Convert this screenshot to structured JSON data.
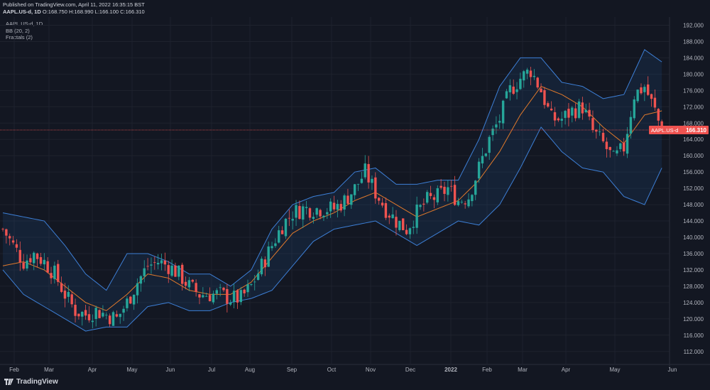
{
  "header": {
    "published": "Published on TradingView.com, April 11, 2022 16:35:15 BST",
    "symbol": "AAPL.US-d, 1D",
    "ohlc": "O:168.750 H:168.990 L:166.100 C:166.310"
  },
  "legend": {
    "title": "AAPL.US-d, 1D",
    "items": [
      "BB (20, 2)",
      "Fractals (2)"
    ]
  },
  "price_label": {
    "symbol": "AAPL.US-d",
    "value": "166.310"
  },
  "brand": "TradingView",
  "colors": {
    "background": "#131722",
    "up": "#26a69a",
    "down": "#ef5350",
    "bb_band": "#3d7fd6",
    "bb_basis": "#e0792b",
    "price_line": "#ef5350"
  },
  "chart_data": {
    "type": "candlestick",
    "y_axis_labels": [
      "192.000",
      "188.000",
      "184.000",
      "180.000",
      "176.000",
      "172.000",
      "168.000",
      "164.000",
      "160.000",
      "156.000",
      "152.000",
      "148.000",
      "144.000",
      "140.000",
      "136.000",
      "132.000",
      "128.000",
      "124.000",
      "120.000",
      "116.000",
      "112.000"
    ],
    "ylim": [
      109,
      194
    ],
    "x_labels": [
      "Feb",
      "Mar",
      "Apr",
      "May",
      "Jun",
      "Jul",
      "Aug",
      "Sep",
      "Oct",
      "Nov",
      "Dec",
      "2022",
      "Feb",
      "Mar",
      "Apr",
      "May",
      "Jun"
    ],
    "last_close": 166.31,
    "close_path": [
      [
        0,
        142
      ],
      [
        3,
        138
      ],
      [
        6,
        134
      ],
      [
        9,
        136
      ],
      [
        12,
        134
      ],
      [
        15,
        131
      ],
      [
        18,
        126
      ],
      [
        21,
        122
      ],
      [
        24,
        121
      ],
      [
        27,
        122
      ],
      [
        30,
        121
      ],
      [
        33,
        120
      ],
      [
        36,
        124
      ],
      [
        39,
        129
      ],
      [
        42,
        133
      ],
      [
        45,
        134
      ],
      [
        48,
        133
      ],
      [
        51,
        131
      ],
      [
        54,
        128
      ],
      [
        57,
        126
      ],
      [
        60,
        126
      ],
      [
        63,
        126
      ],
      [
        66,
        125
      ],
      [
        69,
        125
      ],
      [
        72,
        128
      ],
      [
        75,
        133
      ],
      [
        78,
        138
      ],
      [
        81,
        143
      ],
      [
        84,
        146
      ],
      [
        87,
        147
      ],
      [
        90,
        147
      ],
      [
        93,
        147
      ],
      [
        96,
        147
      ],
      [
        99,
        149
      ],
      [
        102,
        152
      ],
      [
        105,
        156
      ],
      [
        108,
        151
      ],
      [
        111,
        147
      ],
      [
        114,
        144
      ],
      [
        117,
        142
      ],
      [
        120,
        146
      ],
      [
        123,
        149
      ],
      [
        126,
        150
      ],
      [
        129,
        152
      ],
      [
        132,
        149
      ],
      [
        135,
        150
      ],
      [
        138,
        157
      ],
      [
        141,
        164
      ],
      [
        144,
        169
      ],
      [
        147,
        176
      ],
      [
        150,
        179
      ],
      [
        153,
        181
      ],
      [
        156,
        176
      ],
      [
        159,
        169
      ],
      [
        162,
        169
      ],
      [
        165,
        171
      ],
      [
        168,
        172
      ],
      [
        171,
        166
      ],
      [
        174,
        163
      ],
      [
        177,
        159
      ],
      [
        180,
        162
      ],
      [
        183,
        175
      ],
      [
        186,
        177
      ],
      [
        189,
        171
      ],
      [
        191,
        166
      ]
    ],
    "bb_upper_path": [
      [
        0,
        146
      ],
      [
        6,
        145
      ],
      [
        12,
        144
      ],
      [
        18,
        138
      ],
      [
        24,
        131
      ],
      [
        30,
        127
      ],
      [
        36,
        136
      ],
      [
        42,
        136
      ],
      [
        48,
        134
      ],
      [
        54,
        131
      ],
      [
        60,
        131
      ],
      [
        66,
        128
      ],
      [
        72,
        132
      ],
      [
        78,
        142
      ],
      [
        84,
        148
      ],
      [
        90,
        150
      ],
      [
        96,
        151
      ],
      [
        102,
        156
      ],
      [
        108,
        157
      ],
      [
        114,
        153
      ],
      [
        120,
        153
      ],
      [
        126,
        154
      ],
      [
        132,
        154
      ],
      [
        138,
        164
      ],
      [
        144,
        177
      ],
      [
        150,
        184
      ],
      [
        156,
        184
      ],
      [
        162,
        178
      ],
      [
        168,
        177
      ],
      [
        174,
        174
      ],
      [
        180,
        175
      ],
      [
        186,
        186
      ],
      [
        191,
        183
      ]
    ],
    "bb_basis_path": [
      [
        0,
        133
      ],
      [
        6,
        134
      ],
      [
        12,
        132
      ],
      [
        18,
        128
      ],
      [
        24,
        124
      ],
      [
        30,
        122
      ],
      [
        36,
        126
      ],
      [
        42,
        131
      ],
      [
        48,
        130
      ],
      [
        54,
        127
      ],
      [
        60,
        126
      ],
      [
        66,
        126
      ],
      [
        72,
        129
      ],
      [
        78,
        135
      ],
      [
        84,
        141
      ],
      [
        90,
        144
      ],
      [
        96,
        146
      ],
      [
        102,
        149
      ],
      [
        108,
        151
      ],
      [
        114,
        148
      ],
      [
        120,
        145
      ],
      [
        126,
        147
      ],
      [
        132,
        149
      ],
      [
        138,
        154
      ],
      [
        144,
        161
      ],
      [
        150,
        170
      ],
      [
        156,
        177
      ],
      [
        162,
        175
      ],
      [
        168,
        172
      ],
      [
        174,
        167
      ],
      [
        180,
        163
      ],
      [
        186,
        170
      ],
      [
        191,
        171
      ]
    ],
    "bb_lower_path": [
      [
        0,
        132
      ],
      [
        6,
        126
      ],
      [
        12,
        123
      ],
      [
        18,
        120
      ],
      [
        24,
        117
      ],
      [
        30,
        118
      ],
      [
        36,
        118
      ],
      [
        42,
        123
      ],
      [
        48,
        124
      ],
      [
        54,
        122
      ],
      [
        60,
        122
      ],
      [
        66,
        124
      ],
      [
        72,
        125
      ],
      [
        78,
        127
      ],
      [
        84,
        133
      ],
      [
        90,
        139
      ],
      [
        96,
        142
      ],
      [
        102,
        143
      ],
      [
        108,
        144
      ],
      [
        114,
        141
      ],
      [
        120,
        138
      ],
      [
        126,
        141
      ],
      [
        132,
        144
      ],
      [
        138,
        143
      ],
      [
        144,
        148
      ],
      [
        150,
        157
      ],
      [
        156,
        167
      ],
      [
        162,
        161
      ],
      [
        168,
        157
      ],
      [
        174,
        156
      ],
      [
        180,
        150
      ],
      [
        186,
        148
      ],
      [
        191,
        157
      ]
    ]
  }
}
